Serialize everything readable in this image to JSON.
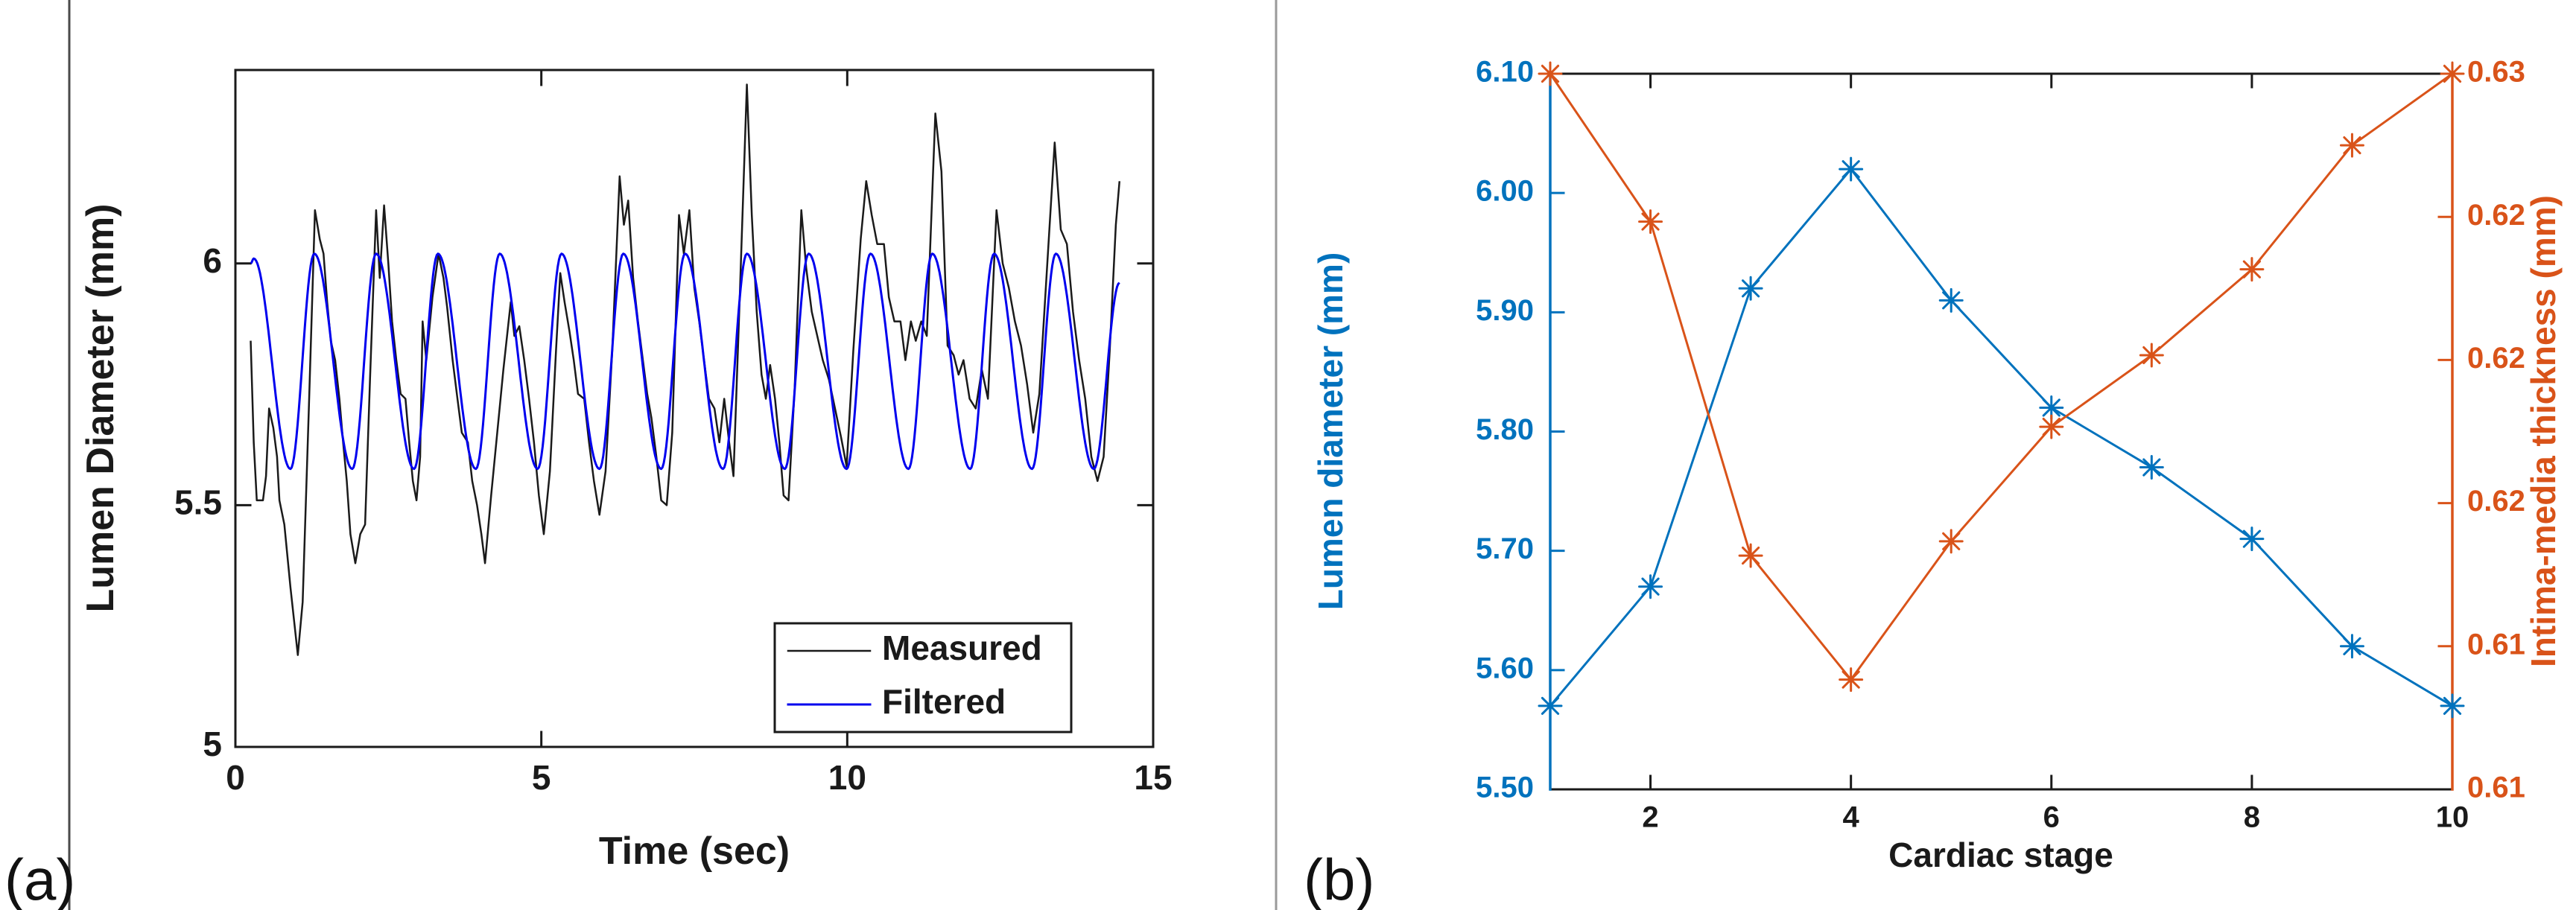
{
  "figure": {
    "panel_letters": {
      "a": "(a)",
      "b": "(b)"
    }
  },
  "decorations": {
    "left_border_line": {
      "x": 93,
      "color": "#4a4a4a",
      "width": 3
    },
    "panel_divider_line": {
      "x": 1713,
      "color": "#9a9a9a",
      "width": 3
    }
  },
  "chart_data": [
    {
      "id": "lumen-diameter-vs-time",
      "type": "line",
      "panel_label": "(a)",
      "xlabel": "Time (sec)",
      "ylabel": "Lumen Diameter (mm)",
      "xlim": [
        0,
        15
      ],
      "ylim": [
        5.0,
        6.4
      ],
      "grid": false,
      "xticks": {
        "values": [
          0,
          5,
          10,
          15
        ],
        "labels": [
          "0",
          "5",
          "10",
          "15"
        ]
      },
      "yticks": {
        "values": [
          5,
          5.5,
          6
        ],
        "labels": [
          "5",
          "5.5",
          "6"
        ]
      },
      "legend": {
        "position": "lower-right",
        "entries": [
          {
            "label": "Measured",
            "color": "#1a1a1a"
          },
          {
            "label": "Filtered",
            "color": "#0000ee"
          }
        ]
      },
      "series": [
        {
          "name": "Measured",
          "color": "#1a1a1a",
          "style": "jagged",
          "width": 2.5,
          "points": [
            [
              0.25,
              5.84
            ],
            [
              0.3,
              5.63
            ],
            [
              0.35,
              5.51
            ],
            [
              0.45,
              5.51
            ],
            [
              0.5,
              5.56
            ],
            [
              0.55,
              5.7
            ],
            [
              0.62,
              5.66
            ],
            [
              0.68,
              5.6
            ],
            [
              0.72,
              5.51
            ],
            [
              0.8,
              5.46
            ],
            [
              0.9,
              5.33
            ],
            [
              1.02,
              5.19
            ],
            [
              1.1,
              5.3
            ],
            [
              1.2,
              5.7
            ],
            [
              1.3,
              6.11
            ],
            [
              1.38,
              6.05
            ],
            [
              1.44,
              6.02
            ],
            [
              1.5,
              5.92
            ],
            [
              1.56,
              5.84
            ],
            [
              1.63,
              5.8
            ],
            [
              1.7,
              5.72
            ],
            [
              1.76,
              5.63
            ],
            [
              1.82,
              5.55
            ],
            [
              1.88,
              5.44
            ],
            [
              1.96,
              5.38
            ],
            [
              2.04,
              5.44
            ],
            [
              2.12,
              5.46
            ],
            [
              2.2,
              5.76
            ],
            [
              2.3,
              6.11
            ],
            [
              2.36,
              5.97
            ],
            [
              2.43,
              6.12
            ],
            [
              2.5,
              6.0
            ],
            [
              2.56,
              5.88
            ],
            [
              2.63,
              5.8
            ],
            [
              2.7,
              5.73
            ],
            [
              2.78,
              5.72
            ],
            [
              2.84,
              5.63
            ],
            [
              2.9,
              5.55
            ],
            [
              2.96,
              5.51
            ],
            [
              3.02,
              5.6
            ],
            [
              3.06,
              5.88
            ],
            [
              3.12,
              5.8
            ],
            [
              3.22,
              5.93
            ],
            [
              3.32,
              6.02
            ],
            [
              3.4,
              5.97
            ],
            [
              3.46,
              5.91
            ],
            [
              3.55,
              5.8
            ],
            [
              3.63,
              5.72
            ],
            [
              3.7,
              5.65
            ],
            [
              3.8,
              5.63
            ],
            [
              3.87,
              5.55
            ],
            [
              3.95,
              5.5
            ],
            [
              4.02,
              5.44
            ],
            [
              4.08,
              5.38
            ],
            [
              4.18,
              5.52
            ],
            [
              4.28,
              5.65
            ],
            [
              4.38,
              5.78
            ],
            [
              4.5,
              5.92
            ],
            [
              4.56,
              5.85
            ],
            [
              4.64,
              5.87
            ],
            [
              4.72,
              5.8
            ],
            [
              4.8,
              5.72
            ],
            [
              4.88,
              5.63
            ],
            [
              4.96,
              5.52
            ],
            [
              5.04,
              5.44
            ],
            [
              5.14,
              5.57
            ],
            [
              5.24,
              5.82
            ],
            [
              5.31,
              5.98
            ],
            [
              5.38,
              5.92
            ],
            [
              5.46,
              5.86
            ],
            [
              5.53,
              5.8
            ],
            [
              5.6,
              5.73
            ],
            [
              5.7,
              5.72
            ],
            [
              5.78,
              5.63
            ],
            [
              5.86,
              5.55
            ],
            [
              5.95,
              5.48
            ],
            [
              6.05,
              5.57
            ],
            [
              6.16,
              5.82
            ],
            [
              6.28,
              6.18
            ],
            [
              6.35,
              6.08
            ],
            [
              6.42,
              6.13
            ],
            [
              6.5,
              5.97
            ],
            [
              6.58,
              5.88
            ],
            [
              6.66,
              5.8
            ],
            [
              6.73,
              5.73
            ],
            [
              6.8,
              5.68
            ],
            [
              6.88,
              5.6
            ],
            [
              6.96,
              5.51
            ],
            [
              7.05,
              5.5
            ],
            [
              7.14,
              5.65
            ],
            [
              7.25,
              6.1
            ],
            [
              7.33,
              6.02
            ],
            [
              7.42,
              6.11
            ],
            [
              7.5,
              5.95
            ],
            [
              7.58,
              5.88
            ],
            [
              7.66,
              5.8
            ],
            [
              7.74,
              5.72
            ],
            [
              7.83,
              5.7
            ],
            [
              7.91,
              5.63
            ],
            [
              7.99,
              5.72
            ],
            [
              8.07,
              5.63
            ],
            [
              8.14,
              5.56
            ],
            [
              8.24,
              5.92
            ],
            [
              8.36,
              6.37
            ],
            [
              8.44,
              6.1
            ],
            [
              8.52,
              5.9
            ],
            [
              8.6,
              5.77
            ],
            [
              8.67,
              5.72
            ],
            [
              8.74,
              5.79
            ],
            [
              8.82,
              5.72
            ],
            [
              8.89,
              5.63
            ],
            [
              8.96,
              5.52
            ],
            [
              9.04,
              5.51
            ],
            [
              9.14,
              5.74
            ],
            [
              9.25,
              6.11
            ],
            [
              9.33,
              5.99
            ],
            [
              9.42,
              5.9
            ],
            [
              9.51,
              5.85
            ],
            [
              9.6,
              5.8
            ],
            [
              9.7,
              5.76
            ],
            [
              9.8,
              5.7
            ],
            [
              9.9,
              5.64
            ],
            [
              9.99,
              5.58
            ],
            [
              10.1,
              5.82
            ],
            [
              10.22,
              6.05
            ],
            [
              10.31,
              6.17
            ],
            [
              10.4,
              6.1
            ],
            [
              10.49,
              6.04
            ],
            [
              10.6,
              6.04
            ],
            [
              10.68,
              5.93
            ],
            [
              10.77,
              5.88
            ],
            [
              10.87,
              5.88
            ],
            [
              10.95,
              5.8
            ],
            [
              11.04,
              5.88
            ],
            [
              11.12,
              5.84
            ],
            [
              11.21,
              5.88
            ],
            [
              11.3,
              5.85
            ],
            [
              11.44,
              6.31
            ],
            [
              11.54,
              6.19
            ],
            [
              11.64,
              5.83
            ],
            [
              11.74,
              5.81
            ],
            [
              11.82,
              5.77
            ],
            [
              11.9,
              5.8
            ],
            [
              12.0,
              5.72
            ],
            [
              12.1,
              5.7
            ],
            [
              12.2,
              5.78
            ],
            [
              12.3,
              5.72
            ],
            [
              12.44,
              6.11
            ],
            [
              12.54,
              6.0
            ],
            [
              12.64,
              5.95
            ],
            [
              12.74,
              5.88
            ],
            [
              12.84,
              5.83
            ],
            [
              12.94,
              5.75
            ],
            [
              13.04,
              5.65
            ],
            [
              13.14,
              5.73
            ],
            [
              13.27,
              6.0
            ],
            [
              13.39,
              6.25
            ],
            [
              13.49,
              6.07
            ],
            [
              13.59,
              6.04
            ],
            [
              13.69,
              5.9
            ],
            [
              13.79,
              5.8
            ],
            [
              13.89,
              5.72
            ],
            [
              13.99,
              5.6
            ],
            [
              14.09,
              5.55
            ],
            [
              14.19,
              5.6
            ],
            [
              14.29,
              5.82
            ],
            [
              14.39,
              6.08
            ],
            [
              14.45,
              6.17
            ]
          ]
        },
        {
          "name": "Filtered",
          "color": "#0000ee",
          "style": "smooth",
          "width": 3,
          "peak_value": 6.02,
          "trough_value": 5.575,
          "extremes": [
            [
              0.25,
              6.0
            ],
            [
              0.3,
              6.01
            ],
            [
              0.9,
              5.575
            ],
            [
              1.29,
              6.02
            ],
            [
              1.91,
              5.575
            ],
            [
              2.3,
              6.02
            ],
            [
              2.92,
              5.575
            ],
            [
              3.31,
              6.02
            ],
            [
              3.93,
              5.575
            ],
            [
              4.32,
              6.02
            ],
            [
              4.94,
              5.575
            ],
            [
              5.33,
              6.02
            ],
            [
              5.95,
              5.575
            ],
            [
              6.34,
              6.02
            ],
            [
              6.96,
              5.575
            ],
            [
              7.35,
              6.02
            ],
            [
              7.97,
              5.575
            ],
            [
              8.36,
              6.02
            ],
            [
              8.98,
              5.575
            ],
            [
              9.37,
              6.02
            ],
            [
              9.99,
              5.575
            ],
            [
              10.38,
              6.02
            ],
            [
              11.0,
              5.575
            ],
            [
              11.39,
              6.02
            ],
            [
              12.01,
              5.575
            ],
            [
              12.4,
              6.02
            ],
            [
              13.02,
              5.575
            ],
            [
              13.41,
              6.02
            ],
            [
              14.03,
              5.575
            ],
            [
              14.45,
              5.96
            ]
          ]
        }
      ]
    },
    {
      "id": "cardiac-stage-dual-axis",
      "type": "line",
      "panel_label": "(b)",
      "xlabel": "Cardiac stage",
      "categories": [
        1,
        2,
        3,
        4,
        5,
        6,
        7,
        8,
        9,
        10
      ],
      "xticks": {
        "values": [
          2,
          4,
          6,
          8,
          10
        ],
        "labels": [
          "2",
          "4",
          "6",
          "8",
          "10"
        ]
      },
      "left_axis": {
        "label": "Lumen diameter (mm)",
        "color": "#0072BD",
        "lim": [
          5.5,
          6.1
        ],
        "tick_values": [
          5.5,
          5.6,
          5.7,
          5.8,
          5.9,
          6.0,
          6.1
        ],
        "tick_labels": [
          "5.50",
          "5.60",
          "5.70",
          "5.80",
          "5.90",
          "6.00",
          "6.10"
        ]
      },
      "right_axis": {
        "label": "Intima-media thickness (mm)",
        "color": "#D95319",
        "lim": [
          0.61,
          0.625
        ],
        "tick_values": [
          0.61,
          0.613,
          0.616,
          0.619,
          0.622,
          0.625
        ],
        "tick_labels": [
          "0.61",
          "0.61",
          "0.62",
          "0.62",
          "0.62",
          "0.63"
        ]
      },
      "series": [
        {
          "name": "Lumen diameter",
          "axis": "left",
          "color": "#0072BD",
          "marker": "asterisk",
          "width": 3,
          "values": [
            5.57,
            5.67,
            5.92,
            6.02,
            5.91,
            5.82,
            5.77,
            5.71,
            5.62,
            5.57
          ]
        },
        {
          "name": "Intima-media thickness",
          "axis": "right",
          "color": "#D95319",
          "marker": "asterisk",
          "width": 3,
          "values": [
            0.625,
            0.6219,
            0.6149,
            0.6123,
            0.6152,
            0.6176,
            0.6191,
            0.6209,
            0.6235,
            0.625
          ]
        }
      ]
    }
  ]
}
